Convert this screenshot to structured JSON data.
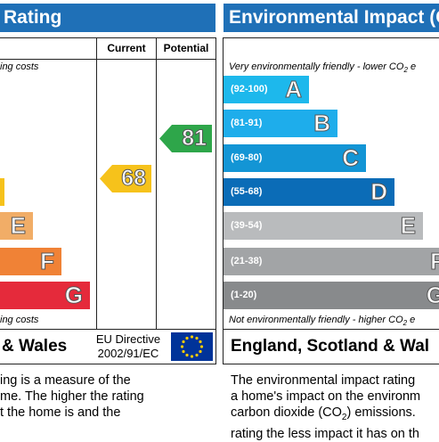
{
  "energy": {
    "header": "Rating",
    "col_current": "Current",
    "col_potential": "Potential",
    "note_top": "ing costs",
    "note_bottom": "ing costs",
    "bars": [
      {
        "letter": "E",
        "color": "#f1ad67"
      },
      {
        "letter": "F",
        "color": "#f08236"
      },
      {
        "letter": "G",
        "color": "#e52a3b"
      }
    ],
    "current_value": "68",
    "current_color": "#f6c21b",
    "potential_value": "81",
    "potential_color": "#2ea64a",
    "footer_region": "& Wales",
    "eu_line1": "EU Directive",
    "eu_line2": "2002/91/EC",
    "desc_lines": [
      "ing is a measure of the",
      "me. The higher the rating",
      "t the home is and the"
    ]
  },
  "environmental": {
    "header": "Environmental Impact (C",
    "note_top": "Very environmentally friendly - lower CO",
    "note_top_sub": "2",
    "note_top_tail": " e",
    "note_bottom": "Not environmentally friendly - higher CO",
    "note_bottom_sub": "2",
    "note_bottom_tail": " e",
    "bars": [
      {
        "range": "(92-100)",
        "letter": "A",
        "color": "#1db8ec"
      },
      {
        "range": "(81-91)",
        "letter": "B",
        "color": "#1eadeb"
      },
      {
        "range": "(69-80)",
        "letter": "C",
        "color": "#1395d5"
      },
      {
        "range": "(55-68)",
        "letter": "D",
        "color": "#0b6cb7"
      },
      {
        "range": "(39-54)",
        "letter": "E",
        "color": "#b9bbbd"
      },
      {
        "range": "(21-38)",
        "letter": "F",
        "color": "#a2a4a6"
      },
      {
        "range": "(1-20)",
        "letter": "G",
        "color": "#888a8c"
      }
    ],
    "footer_region": "England, Scotland & Wal",
    "desc_line1": "The environmental impact rating",
    "desc_line2": "a home's impact on the environm",
    "desc_line3_pre": "carbon dioxide (CO",
    "desc_line3_sub": "2",
    "desc_line3_post": ") emissions.",
    "desc_line4": "rating the less impact it has on th"
  }
}
